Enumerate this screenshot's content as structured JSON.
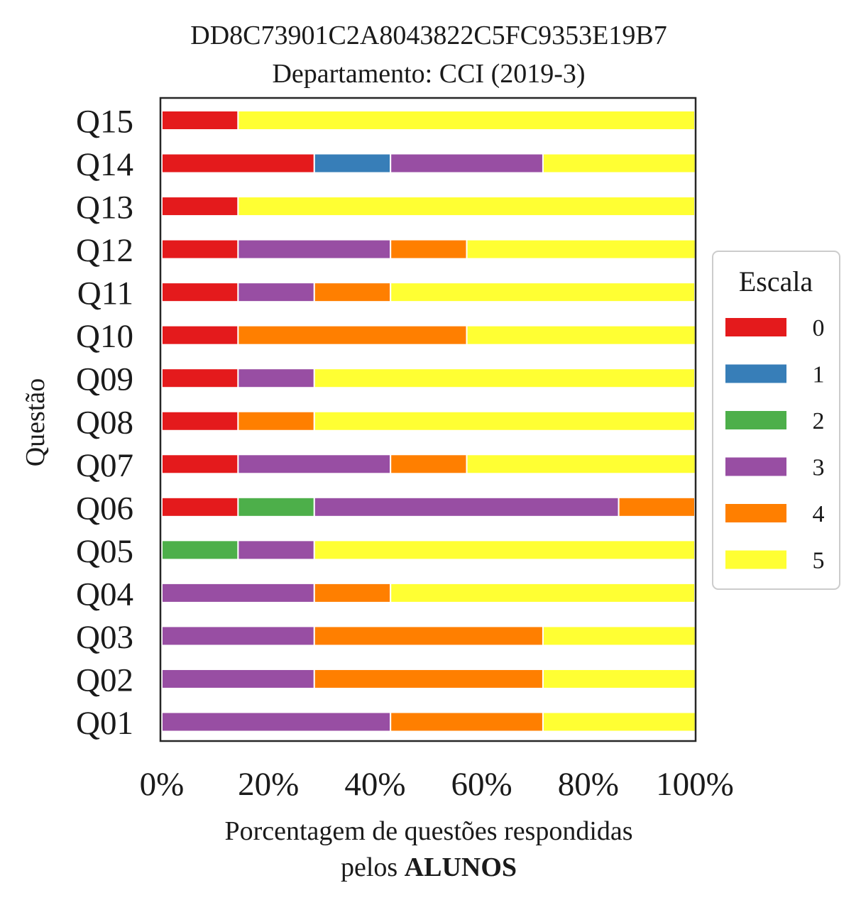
{
  "chart_data": {
    "type": "bar",
    "orientation": "horizontal",
    "stacked": true,
    "title": "DD8C73901C2A8043822C5FC9353E19B7",
    "subtitle": "Departamento: CCI (2019-3)",
    "xlabel": "Porcentagem de questões respondidas",
    "xlabel_line2_prefix": "pelos ",
    "xlabel_line2_bold": "ALUNOS",
    "ylabel": "Questão",
    "xlim": [
      0,
      100
    ],
    "x_ticks": [
      "0%",
      "20%",
      "40%",
      "60%",
      "80%",
      "100%"
    ],
    "grid": false,
    "legend": {
      "title": "Escala",
      "placement": "center-right"
    },
    "categories": [
      "Q01",
      "Q02",
      "Q03",
      "Q04",
      "Q05",
      "Q06",
      "Q07",
      "Q08",
      "Q09",
      "Q10",
      "Q11",
      "Q12",
      "Q13",
      "Q14",
      "Q15"
    ],
    "series": [
      {
        "name": "0",
        "color": "#e41a1c",
        "values": [
          0,
          0,
          0,
          0,
          0,
          14.3,
          14.3,
          14.3,
          14.3,
          14.3,
          14.3,
          14.3,
          14.3,
          28.6,
          14.3
        ]
      },
      {
        "name": "1",
        "color": "#377eb8",
        "values": [
          0,
          0,
          0,
          0,
          0,
          0,
          0,
          0,
          0,
          0,
          0,
          0,
          0,
          14.3,
          0
        ]
      },
      {
        "name": "2",
        "color": "#4daf4a",
        "values": [
          0,
          0,
          0,
          0,
          14.3,
          14.3,
          0,
          0,
          0,
          0,
          0,
          0,
          0,
          0,
          0
        ]
      },
      {
        "name": "3",
        "color": "#984ea3",
        "values": [
          42.9,
          28.6,
          28.6,
          28.6,
          14.3,
          57.1,
          28.6,
          0,
          14.3,
          0,
          14.3,
          28.6,
          0,
          28.6,
          0
        ]
      },
      {
        "name": "4",
        "color": "#ff7f00",
        "values": [
          28.6,
          42.9,
          42.9,
          14.3,
          0,
          14.3,
          14.3,
          14.3,
          0,
          42.9,
          14.3,
          14.3,
          0,
          0,
          0
        ]
      },
      {
        "name": "5",
        "color": "#ffff33",
        "values": [
          28.6,
          28.6,
          28.6,
          57.1,
          71.4,
          0,
          42.9,
          71.4,
          71.4,
          42.9,
          57.1,
          42.9,
          85.7,
          28.6,
          85.7
        ]
      }
    ]
  }
}
